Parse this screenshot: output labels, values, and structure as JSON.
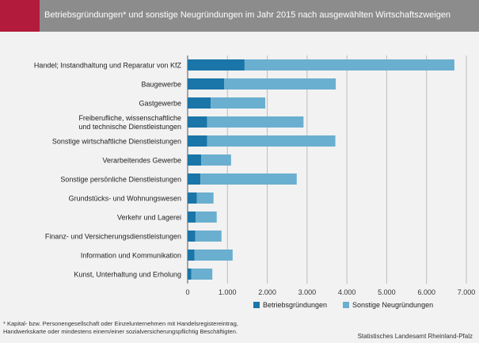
{
  "header": {
    "title": "Betriebsgründungen* und sonstige Neugründungen im Jahr 2015  nach ausgewählten Wirtschaftszweigen",
    "accent_color": "#b31b3c",
    "bar_color": "#8c8c8c"
  },
  "chart_data": {
    "type": "bar",
    "orientation": "horizontal",
    "stacked": true,
    "categories": [
      [
        "Handel; Instandhaltung und Reparatur von KfZ"
      ],
      [
        "Baugewerbe"
      ],
      [
        "Gastgewerbe"
      ],
      [
        "Freiberufliche, wissenschaftliche",
        "und technische Dienstleistungen"
      ],
      [
        "Sonstige wirtschaftliche Dienstleistungen"
      ],
      [
        "Verarbeitendes Gewerbe"
      ],
      [
        "Sonstige persönliche Dienstleistungen"
      ],
      [
        "Grundstücks- und Wohnungswesen"
      ],
      [
        "Verkehr und Lagerei"
      ],
      [
        "Finanz- und Versicherungsdienstleistungen"
      ],
      [
        "Information und Kommunikation"
      ],
      [
        "Kunst, Unterhaltung und Erholung"
      ]
    ],
    "series": [
      {
        "name": "Betriebsgründungen",
        "color": "#1a75a8",
        "values": [
          1430,
          920,
          580,
          490,
          490,
          340,
          320,
          230,
          200,
          190,
          170,
          90
        ]
      },
      {
        "name": "Sonstige Neugründungen",
        "color": "#6aafd0",
        "values": [
          5270,
          2800,
          1370,
          2420,
          3220,
          750,
          2420,
          420,
          530,
          660,
          960,
          530
        ]
      }
    ],
    "xlim": [
      0,
      7000
    ],
    "xticks": [
      0,
      1000,
      2000,
      3000,
      4000,
      5000,
      6000,
      7000
    ],
    "xtick_labels": [
      "0",
      "1.000",
      "2.000",
      "3.000",
      "4.000",
      "5.000",
      "6.000",
      "7.000"
    ],
    "grid": true,
    "legend_position": "bottom"
  },
  "footnote": [
    "* Kapital- bzw. Personengesellschaft oder Einzelunternehmen  mit  Handelsregistereintrag,",
    "Handwerkskarte oder mindestens einem/einer sozialversicherungspflichtig Beschäftigten."
  ],
  "source": "Statistisches Landesamt Rheinland-Pfalz"
}
